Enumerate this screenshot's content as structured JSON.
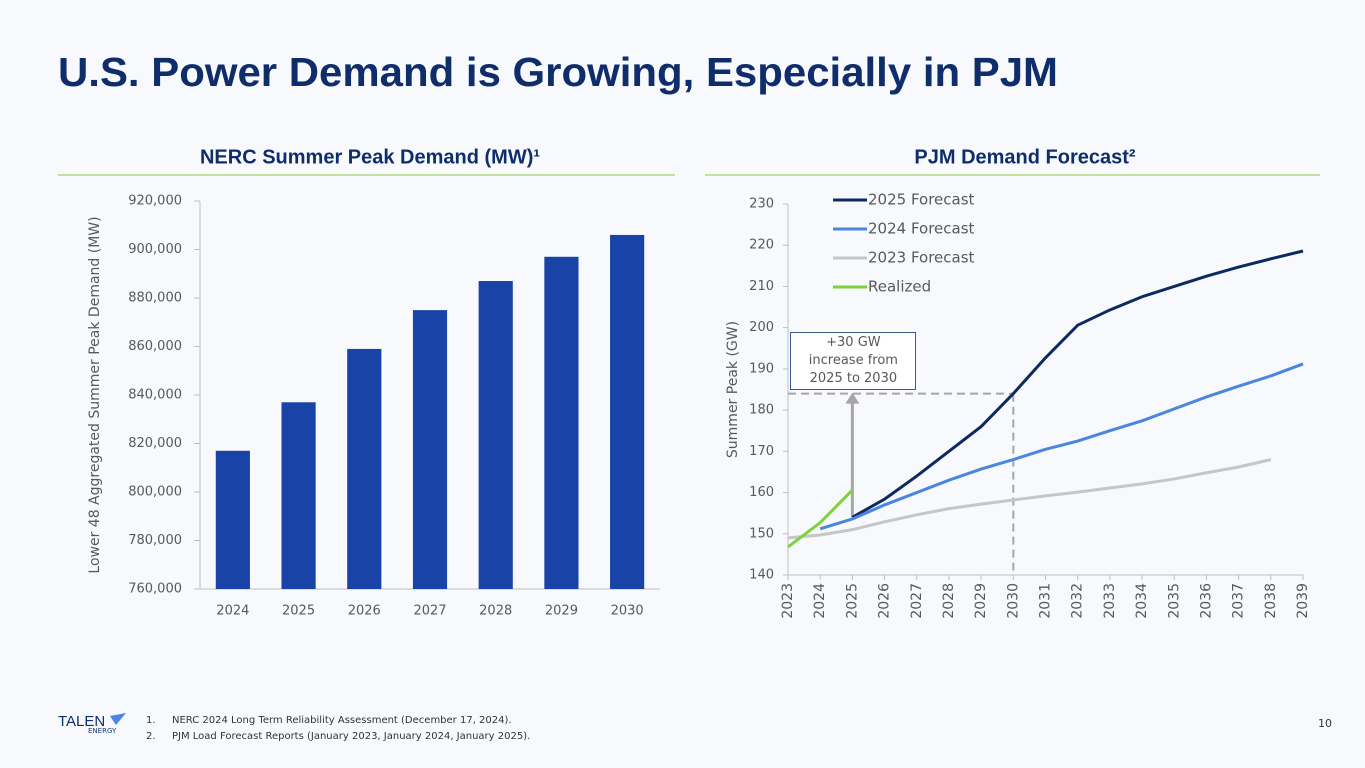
{
  "page_title": "U.S. Power Demand is Growing, Especially in PJM",
  "chart_data": [
    {
      "type": "bar",
      "title": "NERC Summer Peak Demand (MW)¹",
      "y_label": "Lower 48 Aggregated Summer Peak Demand (MW)",
      "categories": [
        "2024",
        "2025",
        "2026",
        "2027",
        "2028",
        "2029",
        "2030"
      ],
      "values": [
        817000,
        837000,
        859000,
        875000,
        887000,
        897000,
        906000
      ],
      "color": "#1a43a8",
      "ylim": [
        760000,
        920000
      ],
      "yticks": [
        {
          "value": 760000,
          "label": "760,000"
        },
        {
          "value": 780000,
          "label": "780,000"
        },
        {
          "value": 800000,
          "label": "800,000"
        },
        {
          "value": 820000,
          "label": "820,000"
        },
        {
          "value": 840000,
          "label": "840,000"
        },
        {
          "value": 860000,
          "label": "860,000"
        },
        {
          "value": 880000,
          "label": "880,000"
        },
        {
          "value": 900000,
          "label": "900,000"
        },
        {
          "value": 920000,
          "label": "920,000"
        }
      ],
      "grid": false
    },
    {
      "type": "line",
      "title": "PJM Demand Forecast²",
      "y_label": "Summer Peak (GW)",
      "x": [
        2023,
        2024,
        2025,
        2026,
        2027,
        2028,
        2029,
        2030,
        2031,
        2032,
        2033,
        2034,
        2035,
        2036,
        2037,
        2038,
        2039
      ],
      "series": [
        {
          "name": "2025 Forecast",
          "color": "#0d2a5e",
          "values": [
            null,
            null,
            154,
            158.4,
            164,
            170,
            176,
            184,
            192.7,
            200.6,
            204.3,
            207.5,
            210,
            212.5,
            214.7,
            216.7,
            218.6
          ]
        },
        {
          "name": "2024 Forecast",
          "color": "#4a86e0",
          "values": [
            null,
            151.2,
            153.6,
            157,
            160,
            163,
            165.7,
            168,
            170.5,
            172.5,
            175,
            177.4,
            180.3,
            183.2,
            185.8,
            188.3,
            191.2
          ]
        },
        {
          "name": "2023 Forecast",
          "color": "#c6c6c6",
          "values": [
            149,
            149.7,
            151,
            152.9,
            154.6,
            156.1,
            157.2,
            158.2,
            159.2,
            160.1,
            161.1,
            162.1,
            163.3,
            164.8,
            166.2,
            168,
            null
          ]
        },
        {
          "name": "Realized",
          "color": "#7ed23a",
          "values": [
            146.8,
            152.7,
            160.6,
            null,
            null,
            null,
            null,
            null,
            null,
            null,
            null,
            null,
            null,
            null,
            null,
            null,
            null
          ]
        }
      ],
      "annotation": "+30 GW increase from 2025 to 2030",
      "xlim": [
        2023,
        2039
      ],
      "xticks": [
        2023,
        2024,
        2025,
        2026,
        2027,
        2028,
        2029,
        2030,
        2031,
        2032,
        2033,
        2034,
        2035,
        2036,
        2037,
        2038,
        2039
      ],
      "ylim": [
        140,
        230
      ],
      "yticks": [
        140,
        150,
        160,
        170,
        180,
        190,
        200,
        210,
        220,
        230
      ],
      "legend": "upper left",
      "grid": false
    }
  ],
  "footnotes": [
    {
      "number": "1.",
      "text": "NERC 2024 Long Term Reliability Assessment (December 17, 2024)."
    },
    {
      "number": "2.",
      "text": "PJM Load Forecast Reports (January 2023, January 2024, January 2025)."
    }
  ],
  "logo": {
    "name": "TALEN",
    "sub": "ENERGY"
  },
  "page_number": "10"
}
